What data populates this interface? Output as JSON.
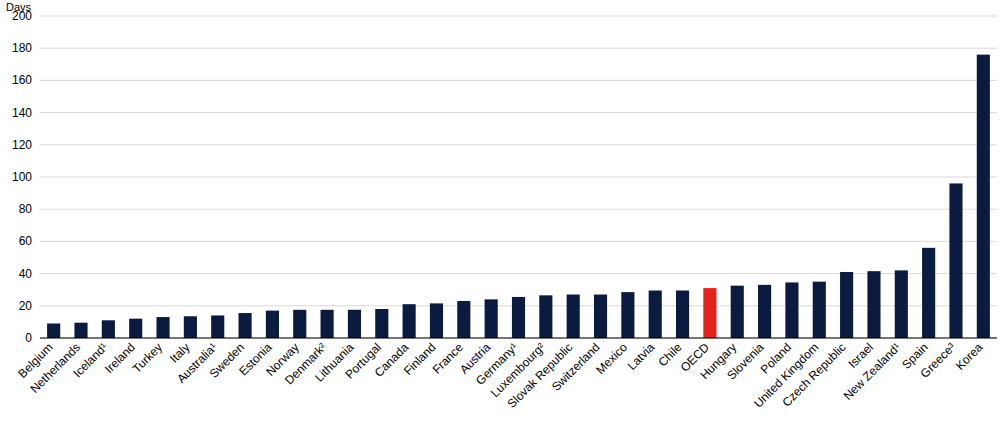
{
  "chart_data": {
    "type": "bar",
    "y_label": "Days",
    "categories": [
      "Belgium",
      "Netherlands",
      "Iceland¹",
      "Ireland",
      "Turkey",
      "Italy",
      "Australia¹",
      "Sweden",
      "Estonia",
      "Norway",
      "Denmark²",
      "Lithuania",
      "Portugal",
      "Canada",
      "Finland",
      "France",
      "Austria",
      "Germany¹",
      "Luxembourg²",
      "Slovak Republic",
      "Switzerland",
      "Mexico",
      "Latvia",
      "Chile",
      "OECD",
      "Hungary",
      "Slovenia",
      "Poland",
      "United Kingdom",
      "Czech Republic",
      "Israel",
      "New Zealand¹",
      "Spain",
      "Greece³",
      "Korea"
    ],
    "values": [
      9,
      9.5,
      11,
      12,
      13,
      13.5,
      14,
      15.5,
      17,
      17.5,
      17.5,
      17.5,
      18,
      21,
      21.5,
      23,
      24,
      25.5,
      26.5,
      27,
      27,
      28.5,
      29.5,
      29.5,
      31,
      32.5,
      33,
      34.5,
      35,
      41,
      41.5,
      42,
      56,
      96,
      176
    ],
    "colors": [
      "#0b1b3f",
      "#0b1b3f",
      "#0b1b3f",
      "#0b1b3f",
      "#0b1b3f",
      "#0b1b3f",
      "#0b1b3f",
      "#0b1b3f",
      "#0b1b3f",
      "#0b1b3f",
      "#0b1b3f",
      "#0b1b3f",
      "#0b1b3f",
      "#0b1b3f",
      "#0b1b3f",
      "#0b1b3f",
      "#0b1b3f",
      "#0b1b3f",
      "#0b1b3f",
      "#0b1b3f",
      "#0b1b3f",
      "#0b1b3f",
      "#0b1b3f",
      "#0b1b3f",
      "#e2231a",
      "#0b1b3f",
      "#0b1b3f",
      "#0b1b3f",
      "#0b1b3f",
      "#0b1b3f",
      "#0b1b3f",
      "#0b1b3f",
      "#0b1b3f",
      "#0b1b3f",
      "#0b1b3f"
    ],
    "ylim": [
      0,
      200
    ],
    "yticks": [
      0,
      20,
      40,
      60,
      80,
      100,
      120,
      140,
      160,
      180,
      200
    ],
    "grid": true
  }
}
